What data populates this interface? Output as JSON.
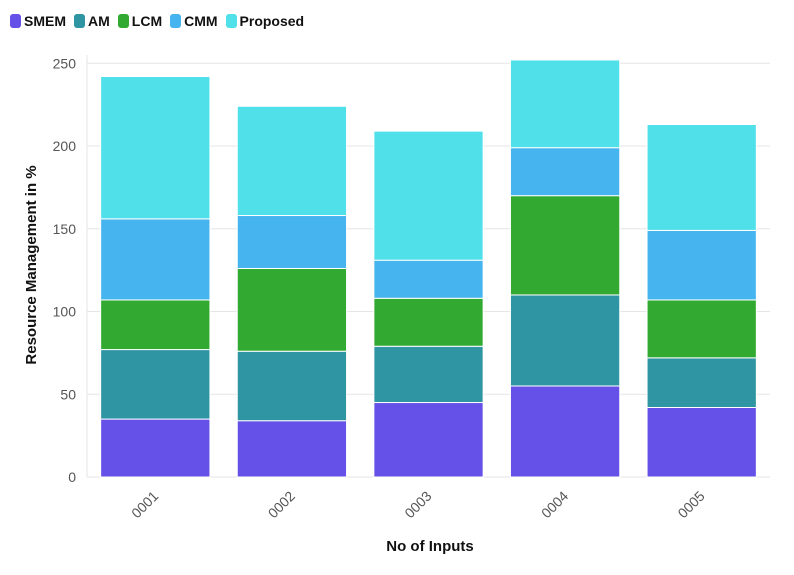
{
  "chart_data": {
    "type": "bar",
    "stacked": true,
    "categories": [
      "0001",
      "0002",
      "0003",
      "0004",
      "0005"
    ],
    "series": [
      {
        "name": "SMEM",
        "color": "#6550e8",
        "values": [
          35,
          34,
          45,
          55,
          42
        ]
      },
      {
        "name": "AM",
        "color": "#2f95a2",
        "values": [
          42,
          42,
          34,
          55,
          30
        ]
      },
      {
        "name": "LCM",
        "color": "#32aa32",
        "values": [
          30,
          50,
          29,
          60,
          35
        ]
      },
      {
        "name": "CMM",
        "color": "#45b4ef",
        "values": [
          49,
          32,
          23,
          29,
          42
        ]
      },
      {
        "name": "Proposed",
        "color": "#50e0ea",
        "values": [
          86,
          66,
          78,
          53,
          64
        ]
      }
    ],
    "xlabel": "No of Inputs",
    "ylabel": "Resource Management in %",
    "ylim": [
      0,
      255
    ],
    "yticks": [
      0,
      50,
      100,
      150,
      200,
      250
    ],
    "grid": true,
    "legend_position": "top-left"
  }
}
